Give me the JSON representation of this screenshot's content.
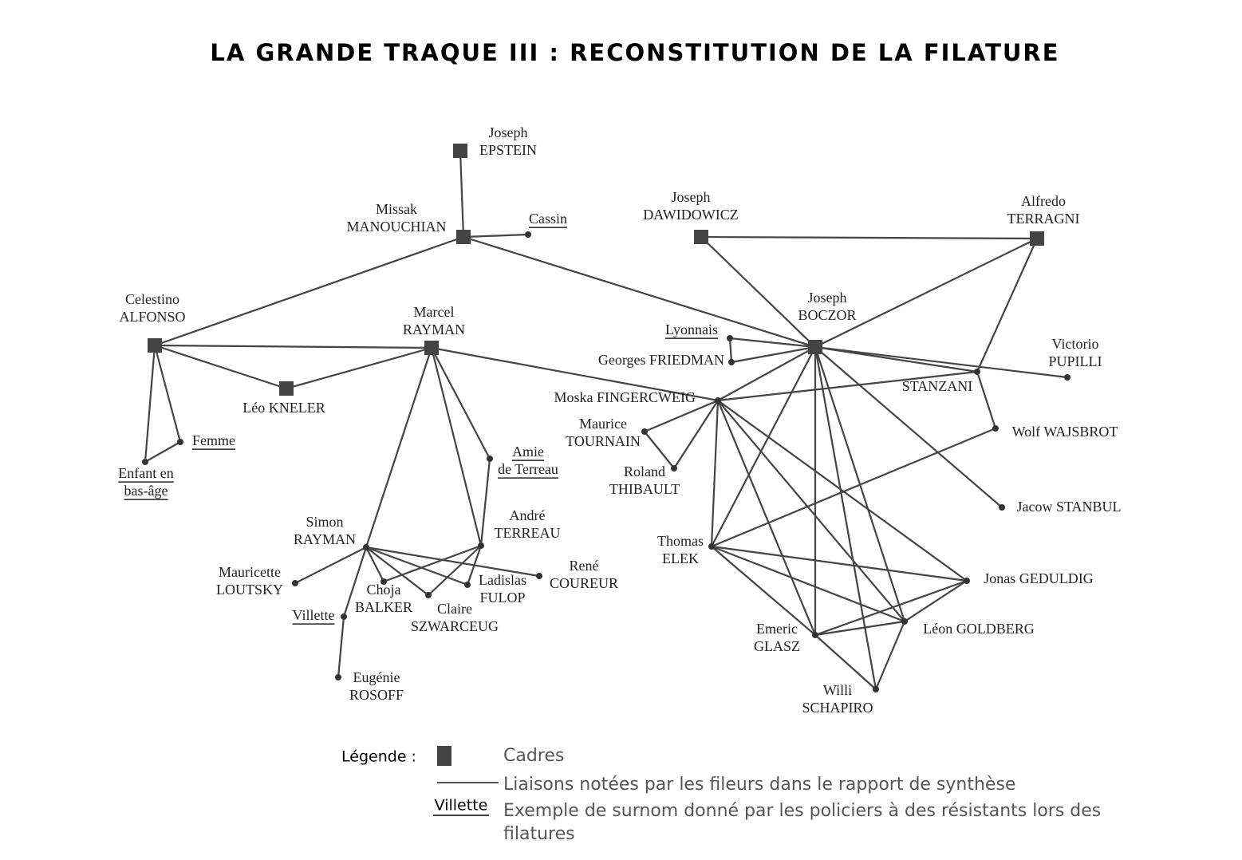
{
  "title": "LA GRANDE TRAQUE III :  RECONSTITUTION DE LA FILATURE",
  "nodes": [
    {
      "lines": [
        "Joseph",
        "EPSTEIN"
      ]
    },
    {
      "lines": [
        "Missak",
        "MANOUCHIAN"
      ]
    },
    {
      "lines": [
        "Cassin"
      ]
    },
    {
      "lines": [
        "Joseph",
        "DAWIDOWICZ"
      ]
    },
    {
      "lines": [
        "Alfredo",
        "TERRAGNI"
      ]
    },
    {
      "lines": [
        "Joseph",
        "BOCZOR"
      ]
    },
    {
      "lines": [
        "Lyonnais"
      ]
    },
    {
      "lines": [
        "Georges FRIEDMAN"
      ]
    },
    {
      "lines": [
        "Celestino",
        "ALFONSO"
      ]
    },
    {
      "lines": [
        "Marcel",
        "RAYMAN"
      ]
    },
    {
      "lines": [
        "Léo KNELER"
      ]
    },
    {
      "lines": [
        "Femme"
      ]
    },
    {
      "lines": [
        "Enfant en",
        "bas-âge"
      ]
    },
    {
      "lines": [
        "Moska FINGERCWEIG"
      ]
    },
    {
      "lines": [
        "STANZANI"
      ]
    },
    {
      "lines": [
        "Victorio",
        "PUPILLI"
      ]
    },
    {
      "lines": [
        "Wolf WAJSBROT"
      ]
    },
    {
      "lines": [
        "Maurice",
        "TOURNAIN"
      ]
    },
    {
      "lines": [
        "Roland",
        "THIBAULT"
      ]
    },
    {
      "lines": [
        "Amie",
        "de Terreau"
      ]
    },
    {
      "lines": [
        "Jacow STANBUL"
      ]
    },
    {
      "lines": [
        "Simon",
        "RAYMAN"
      ]
    },
    {
      "lines": [
        "André",
        "TERREAU"
      ]
    },
    {
      "lines": [
        "Thomas",
        "ELEK"
      ]
    },
    {
      "lines": [
        "Mauricette",
        "LOUTSKY"
      ]
    },
    {
      "lines": [
        "Choja",
        "BALKER"
      ]
    },
    {
      "lines": [
        "Claire",
        "SZWARCEUG"
      ]
    },
    {
      "lines": [
        "Ladislas",
        "FULOP"
      ]
    },
    {
      "lines": [
        "René",
        "COUREUR"
      ]
    },
    {
      "lines": [
        "Jonas GEDULDIG"
      ]
    },
    {
      "lines": [
        "Villette"
      ]
    },
    {
      "lines": [
        "Emeric",
        "GLASZ"
      ]
    },
    {
      "lines": [
        "Léon GOLDBERG"
      ]
    },
    {
      "lines": [
        "Eugénie",
        "ROSOFF"
      ]
    },
    {
      "lines": [
        "Willi",
        "SCHAPIRO"
      ]
    }
  ],
  "legend": {
    "heading": "Légende :",
    "items": [
      {
        "text": [
          "Cadres"
        ]
      },
      {
        "text": [
          "Liaisons notées par les fileurs dans le rapport de synthèse"
        ]
      },
      {
        "example": "Villette",
        "text": [
          "Exemple de surnom  donné par les policiers à des résistants lors des",
          "filatures"
        ]
      }
    ]
  }
}
